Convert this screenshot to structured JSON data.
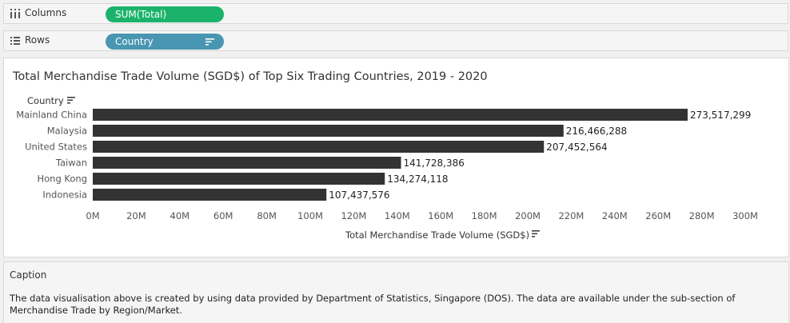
{
  "shelves": {
    "columns": {
      "label": "Columns",
      "pill": "SUM(Total)",
      "pill_color": "#1bb36b"
    },
    "rows": {
      "label": "Rows",
      "pill": "Country",
      "pill_color": "#4996b2"
    }
  },
  "chart_data": {
    "type": "bar",
    "orientation": "horizontal",
    "title": "Total Merchandise Trade Volume (SGD$) of Top Six Trading Countries, 2019 - 2020",
    "categories": [
      "Mainland China",
      "Malaysia",
      "United States",
      "Taiwan",
      "Hong Kong",
      "Indonesia"
    ],
    "values": [
      273517299,
      216466288,
      207452564,
      141728386,
      134274118,
      107437576
    ],
    "value_labels": [
      "273,517,299",
      "216,466,288",
      "207,452,564",
      "141,728,386",
      "134,274,118",
      "107,437,576"
    ],
    "ylabel": "Country",
    "xlabel": "Total Merchandise Trade Volume (SGD$)",
    "xlim": [
      0,
      300000000
    ],
    "xticks": [
      0,
      20000000,
      40000000,
      60000000,
      80000000,
      100000000,
      120000000,
      140000000,
      160000000,
      180000000,
      200000000,
      220000000,
      240000000,
      260000000,
      280000000,
      300000000
    ],
    "xtick_labels": [
      "0M",
      "20M",
      "40M",
      "60M",
      "80M",
      "100M",
      "120M",
      "140M",
      "160M",
      "180M",
      "200M",
      "220M",
      "240M",
      "260M",
      "280M",
      "300M"
    ],
    "bar_color": "#333333",
    "grid": false
  },
  "caption": {
    "title": "Caption",
    "text": "The data visualisation above is created by using data provided by Department of Statistics, Singapore (DOS). The data are available under the sub-section of Merchandise Trade by Region/Market."
  }
}
